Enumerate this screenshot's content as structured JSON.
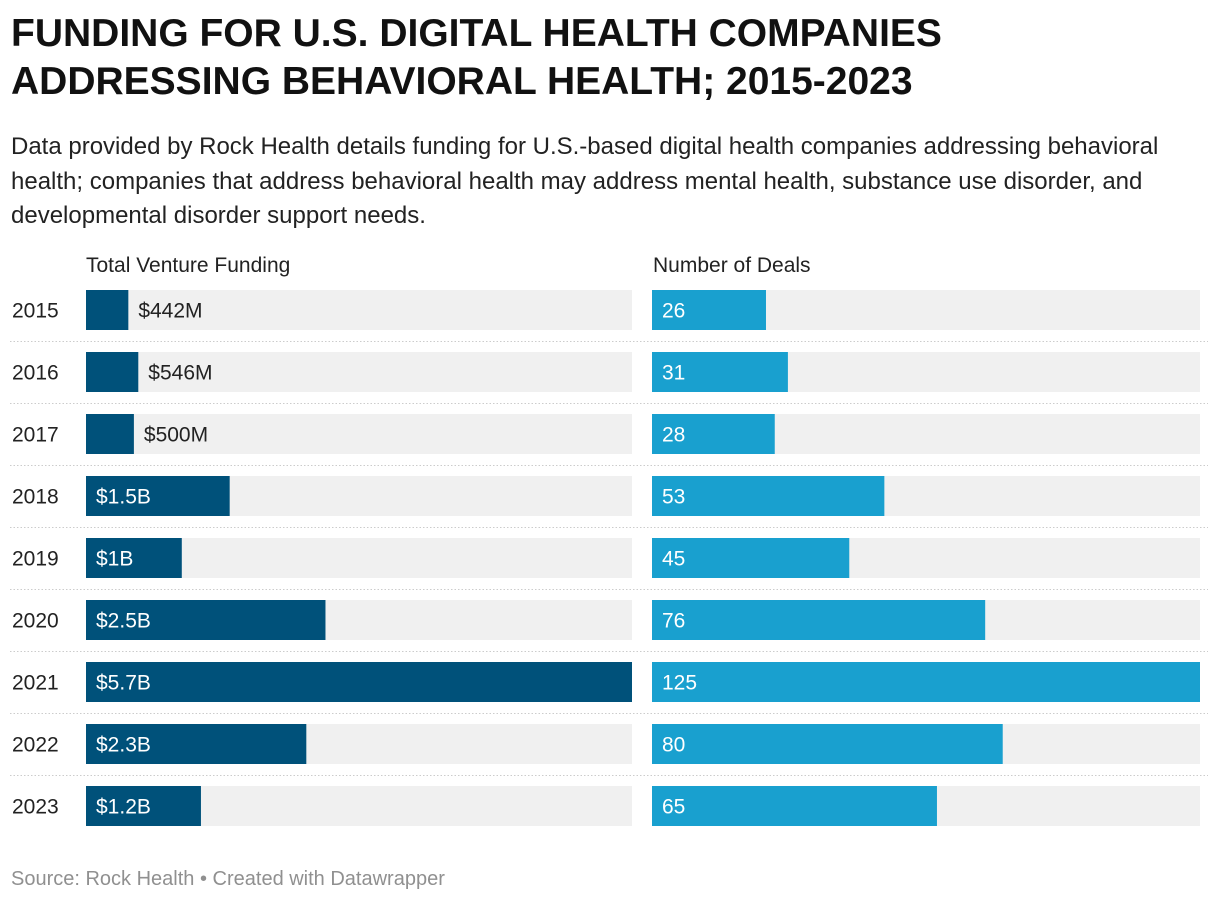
{
  "title": "FUNDING FOR U.S. DIGITAL HEALTH COMPANIES ADDRESSING BEHAVIORAL HEALTH; 2015-2023",
  "subtitle": "Data provided by Rock Health details funding for U.S.-based digital health companies addressing behavioral health; companies that address behavioral health may address mental health, substance use disorder, and developmental disorder support needs.",
  "source": "Source: Rock Health • Created with Datawrapper",
  "colors": {
    "funding_bar": "#00517a",
    "deals_bar": "#19a0cf",
    "bar_background": "#f0f0f0",
    "row_divider": "#cccccc"
  },
  "chart_data": {
    "type": "bar",
    "orientation": "horizontal",
    "categories": [
      "2015",
      "2016",
      "2017",
      "2018",
      "2019",
      "2020",
      "2021",
      "2022",
      "2023"
    ],
    "series": [
      {
        "name": "Total Venture Funding",
        "unit": "USD",
        "values": [
          442000000,
          546000000,
          500000000,
          1500000000,
          1000000000,
          2500000000,
          5700000000,
          2300000000,
          1200000000
        ],
        "labels": [
          "$442M",
          "$546M",
          "$500M",
          "$1.5B",
          "$1B",
          "$2.5B",
          "$5.7B",
          "$2.3B",
          "$1.2B"
        ],
        "xlim": [
          0,
          5700000000
        ]
      },
      {
        "name": "Number of Deals",
        "values": [
          26,
          31,
          28,
          53,
          45,
          76,
          125,
          80,
          65
        ],
        "labels": [
          "26",
          "31",
          "28",
          "53",
          "45",
          "76",
          "125",
          "80",
          "65"
        ],
        "xlim": [
          0,
          125
        ]
      }
    ],
    "grid": false,
    "legend": "none"
  }
}
